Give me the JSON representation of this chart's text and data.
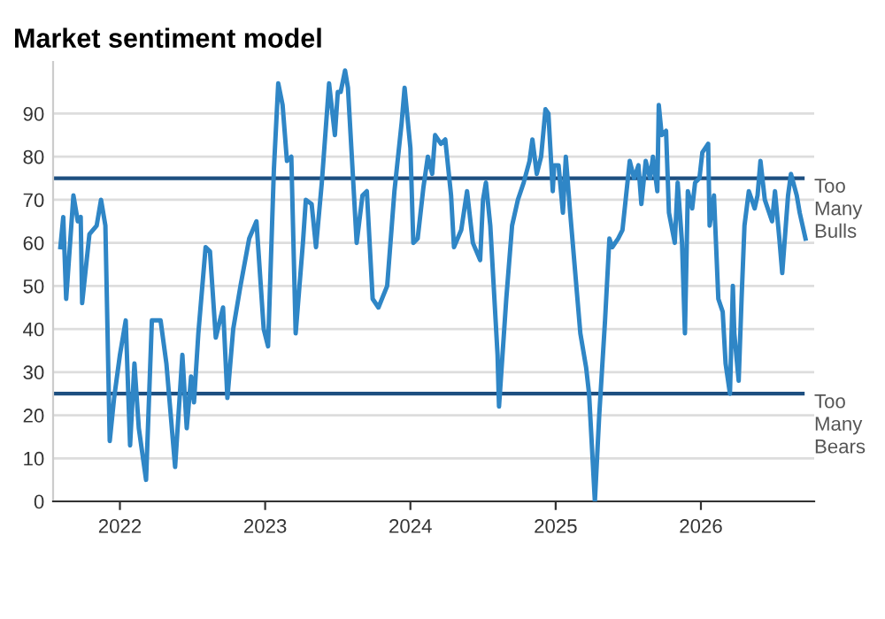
{
  "chart_data": {
    "type": "line",
    "title": "Market sentiment model",
    "x": [
      2021.59,
      2021.61,
      2021.63,
      2021.68,
      2021.71,
      2021.73,
      2021.74,
      2021.79,
      2021.84,
      2021.87,
      2021.9,
      2021.93,
      2021.96,
      2022.0,
      2022.04,
      2022.07,
      2022.1,
      2022.13,
      2022.18,
      2022.22,
      2022.28,
      2022.32,
      2022.38,
      2022.43,
      2022.46,
      2022.49,
      2022.51,
      2022.54,
      2022.59,
      2022.62,
      2022.66,
      2022.71,
      2022.74,
      2022.78,
      2022.83,
      2022.89,
      2022.94,
      2022.99,
      2023.02,
      2023.06,
      2023.09,
      2023.12,
      2023.15,
      2023.18,
      2023.21,
      2023.26,
      2023.28,
      2023.32,
      2023.35,
      2023.39,
      2023.44,
      2023.48,
      2023.5,
      2023.52,
      2023.55,
      2023.57,
      2023.6,
      2023.63,
      2023.67,
      2023.7,
      2023.74,
      2023.78,
      2023.84,
      2023.89,
      2023.94,
      2023.96,
      2024.0,
      2024.02,
      2024.05,
      2024.09,
      2024.12,
      2024.15,
      2024.17,
      2024.21,
      2024.24,
      2024.28,
      2024.3,
      2024.35,
      2024.39,
      2024.43,
      2024.48,
      2024.5,
      2024.52,
      2024.55,
      2024.6,
      2024.61,
      2024.66,
      2024.7,
      2024.74,
      2024.78,
      2024.82,
      2024.84,
      2024.87,
      2024.9,
      2024.93,
      2024.95,
      2024.98,
      2024.99,
      2025.02,
      2025.05,
      2025.07,
      2025.1,
      2025.15,
      2025.17,
      2025.21,
      2025.23,
      2025.27,
      2025.3,
      2025.34,
      2025.37,
      2025.39,
      2025.43,
      2025.46,
      2025.51,
      2025.54,
      2025.57,
      2025.59,
      2025.62,
      2025.65,
      2025.67,
      2025.7,
      2025.71,
      2025.73,
      2025.76,
      2025.78,
      2025.82,
      2025.84,
      2025.87,
      2025.89,
      2025.91,
      2025.94,
      2025.96,
      2025.99,
      2026.01,
      2026.05,
      2026.06,
      2026.09,
      2026.12,
      2026.15,
      2026.17,
      2026.2,
      2026.22,
      2026.23,
      2026.26,
      2026.28,
      2026.3,
      2026.33,
      2026.37,
      2026.39,
      2026.41,
      2026.44,
      2026.46,
      2026.49,
      2026.51,
      2026.54,
      2026.56,
      2026.6,
      2026.62,
      2026.66,
      2026.68,
      2026.72
    ],
    "series": [
      {
        "color": "#2f86c6",
        "values": [
          59,
          66,
          47,
          71,
          65,
          66,
          46,
          62,
          64,
          70,
          64,
          14,
          24,
          34,
          42,
          13,
          32,
          17,
          5,
          42,
          42,
          32,
          8,
          34,
          17,
          29,
          23,
          39,
          59,
          58,
          38,
          45,
          24,
          40,
          50,
          61,
          65,
          40,
          36,
          77,
          97,
          92,
          79,
          80,
          39,
          60,
          70,
          69,
          59,
          74,
          97,
          85,
          95,
          95,
          100,
          96,
          78,
          60,
          71,
          72,
          47,
          45,
          50,
          72,
          88,
          96,
          82,
          60,
          61,
          73,
          80,
          76,
          85,
          83,
          84,
          71,
          59,
          63,
          72,
          60,
          56,
          70,
          74,
          64,
          34,
          22,
          47,
          64,
          70,
          74,
          79,
          84,
          76,
          80,
          91,
          90,
          72,
          78,
          78,
          67,
          80,
          67,
          47,
          39,
          31,
          25,
          0,
          20,
          42,
          61,
          59,
          61,
          63,
          79,
          75,
          78,
          69,
          79,
          75,
          80,
          72,
          92,
          85,
          86,
          67,
          60,
          74,
          60,
          39,
          72,
          68,
          74,
          75,
          81,
          83,
          64,
          71,
          47,
          44,
          32,
          25,
          50,
          39,
          28,
          47,
          64,
          72,
          68,
          71,
          79,
          70,
          68,
          65,
          72,
          61,
          53,
          71,
          76,
          71,
          67,
          61
        ]
      }
    ],
    "xlim": [
      2021.54,
      2026.78
    ],
    "ylim": [
      0,
      102
    ],
    "xticks": [
      2022,
      2023,
      2024,
      2025,
      2026
    ],
    "yticks": [
      0,
      10,
      20,
      30,
      40,
      50,
      60,
      70,
      80,
      90
    ],
    "grid": "y",
    "ref_lines": [
      {
        "axis": "y",
        "value": 75,
        "label": "Too\nMany\nBulls",
        "color": "#1d4f80"
      },
      {
        "axis": "y",
        "value": 25,
        "label": "Too\nMany\nBears",
        "color": "#1d4f80"
      }
    ]
  }
}
